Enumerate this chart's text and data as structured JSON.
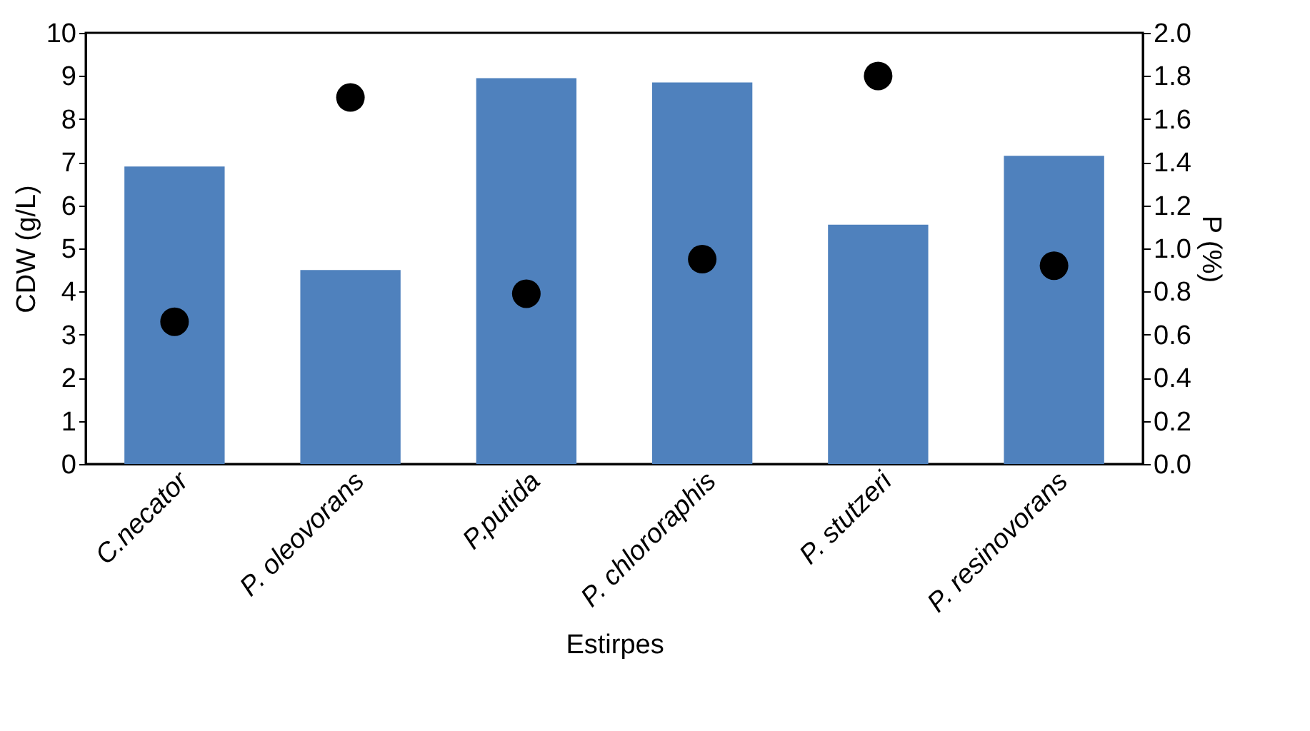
{
  "chart_data": {
    "type": "bar",
    "categories": [
      "C.necator",
      "P. oleovorans",
      "P.putida",
      "P. chlororaphis",
      "P. stutzeri",
      "P. resinovorans"
    ],
    "series": [
      {
        "color": "#4f81bd",
        "values": [
          6.9,
          4.5,
          8.95,
          8.85,
          5.55,
          7.15
        ]
      },
      {
        "type": "scatter",
        "axis": "y2",
        "color": "#000000",
        "marker": "circle",
        "values": [
          0.66,
          1.7,
          0.79,
          0.95,
          1.8,
          0.92
        ]
      }
    ],
    "xlabel": "Estirpes",
    "ylabel": "CDW (g/L)",
    "y2label": "P (%)",
    "ylim": [
      0,
      10
    ],
    "yticks": [
      0,
      1,
      2,
      3,
      4,
      5,
      6,
      7,
      8,
      9,
      10
    ],
    "y2lim": [
      0,
      2
    ],
    "y2ticks": [
      {
        "value": 0,
        "label": "0.0"
      },
      {
        "value": 0.2,
        "label": "0.2"
      },
      {
        "value": 0.4,
        "label": "0.4"
      },
      {
        "value": 0.6,
        "label": "0.6"
      },
      {
        "value": 0.8,
        "label": "0.8"
      },
      {
        "value": 1,
        "label": "1.0"
      },
      {
        "value": 1.2,
        "label": "1.2"
      },
      {
        "value": 1.4,
        "label": "1.4"
      },
      {
        "value": 1.6,
        "label": "1.6"
      },
      {
        "value": 1.8,
        "label": "1.8"
      },
      {
        "value": 2,
        "label": "2.0"
      }
    ]
  }
}
